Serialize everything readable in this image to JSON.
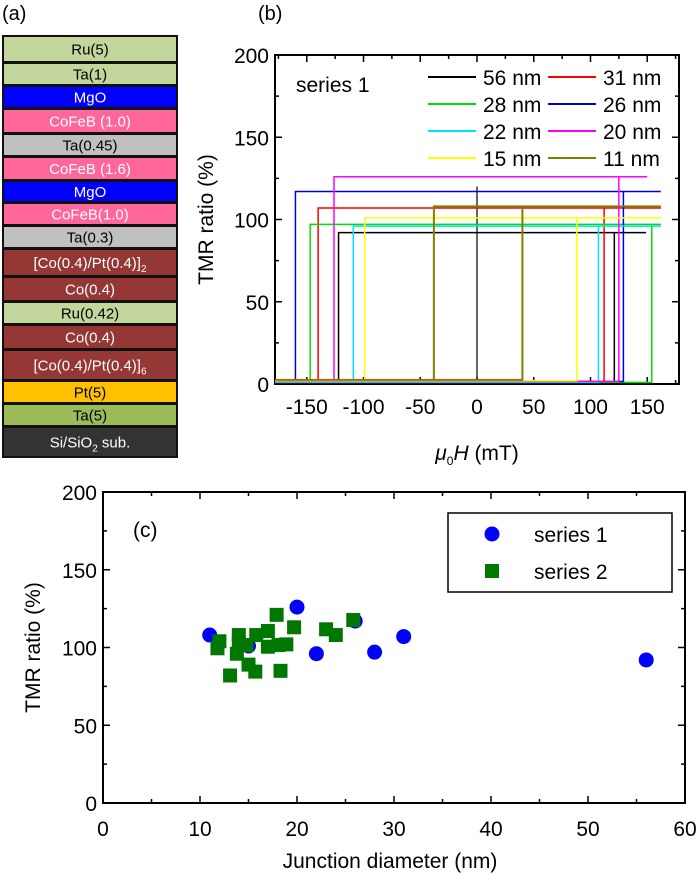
{
  "panel_labels": {
    "a": "(a)",
    "b": "(b)",
    "c": "(c)"
  },
  "stack": {
    "layers": [
      {
        "label": "Ru(5)",
        "sub": "",
        "suffix": "",
        "color": "#c3d69b",
        "text_color": "#000000"
      },
      {
        "label": "Ta(1)",
        "sub": "",
        "suffix": "",
        "color": "#c3d69b",
        "text_color": "#000000"
      },
      {
        "label": "MgO",
        "sub": "",
        "suffix": "",
        "color": "#0000ff",
        "text_color": "#ffffff"
      },
      {
        "label": "CoFeB (1.0)",
        "sub": "",
        "suffix": "",
        "color": "#ff6699",
        "text_color": "#ffffff"
      },
      {
        "label": "Ta(0.45)",
        "sub": "",
        "suffix": "",
        "color": "#c0c0c0",
        "text_color": "#000000"
      },
      {
        "label": "CoFeB (1.6)",
        "sub": "",
        "suffix": "",
        "color": "#ff6699",
        "text_color": "#ffffff"
      },
      {
        "label": "MgO",
        "sub": "",
        "suffix": "",
        "color": "#0000ff",
        "text_color": "#ffffff"
      },
      {
        "label": "CoFeB(1.0)",
        "sub": "",
        "suffix": "",
        "color": "#ff6699",
        "text_color": "#ffffff"
      },
      {
        "label": "Ta(0.3)",
        "sub": "",
        "suffix": "",
        "color": "#c0c0c0",
        "text_color": "#000000"
      },
      {
        "label": "[Co(0.4)/Pt(0.4)]",
        "sub": "2",
        "suffix": "",
        "color": "#953735",
        "text_color": "#ffffff"
      },
      {
        "label": "Co(0.4)",
        "sub": "",
        "suffix": "",
        "color": "#953735",
        "text_color": "#ffffff"
      },
      {
        "label": "Ru(0.42)",
        "sub": "",
        "suffix": "",
        "color": "#c3d69b",
        "text_color": "#000000"
      },
      {
        "label": "Co(0.4)",
        "sub": "",
        "suffix": "",
        "color": "#953735",
        "text_color": "#ffffff"
      },
      {
        "label": "[Co(0.4)/Pt(0.4)]",
        "sub": "6",
        "suffix": "",
        "color": "#953735",
        "text_color": "#ffffff"
      },
      {
        "label": "Pt(5)",
        "sub": "",
        "suffix": "",
        "color": "#ffc000",
        "text_color": "#000000"
      },
      {
        "label": "Ta(5)",
        "sub": "",
        "suffix": "",
        "color": "#9bbb59",
        "text_color": "#000000"
      },
      {
        "label": "Si/SiO",
        "sub": "2",
        "suffix": " sub.",
        "color": "#333333",
        "text_color": "#ffffff"
      }
    ]
  },
  "chart_data": [
    {
      "panel": "b",
      "type": "line",
      "annotation": "series 1",
      "xlabel": {
        "mu": "μ",
        "sub": "0",
        "var": "H",
        "unit": " (mT)"
      },
      "ylabel": "TMR ratio (%)",
      "xlim": [
        -178,
        178
      ],
      "ylim": [
        0,
        200
      ],
      "xticks": [
        -150,
        -100,
        -50,
        0,
        50,
        100,
        150
      ],
      "yticks": [
        0,
        50,
        100,
        150,
        200
      ],
      "legend_placement": "top-right",
      "series": [
        {
          "name": "56 nm",
          "color": "#000000",
          "tmr_high": 92,
          "tmr_low": 1,
          "switch_neg": -122,
          "switch_pos": 121,
          "h_max": 149
        },
        {
          "name": "31 nm",
          "color": "#ff0000",
          "tmr_high": 107,
          "tmr_low": 1.5,
          "switch_neg": -140,
          "switch_pos": 112,
          "h_max": 162
        },
        {
          "name": "28 nm",
          "color": "#00e000",
          "tmr_high": 97,
          "tmr_low": 1,
          "switch_neg": -147,
          "switch_pos": 154,
          "h_max": 162
        },
        {
          "name": "26 nm",
          "color": "#0000e0",
          "tmr_high": 117,
          "tmr_low": 1.5,
          "switch_neg": -160,
          "switch_pos": 129,
          "h_max": 162
        },
        {
          "name": "22 nm",
          "color": "#00e0ff",
          "tmr_high": 96,
          "tmr_low": 1,
          "switch_neg": -109,
          "switch_pos": 107,
          "h_max": 162
        },
        {
          "name": "20 nm",
          "color": "#ff00ff",
          "tmr_high": 126,
          "tmr_low": 1.5,
          "switch_neg": -126,
          "switch_pos": 125,
          "h_max": 150
        },
        {
          "name": "15 nm",
          "color": "#ffff00",
          "tmr_high": 101,
          "tmr_low": 2,
          "switch_neg": -99,
          "switch_pos": 88,
          "h_max": 162
        },
        {
          "name": "11 nm",
          "color": "#808000",
          "tmr_high": 108,
          "tmr_low": 2.5,
          "switch_neg": -38,
          "switch_pos": 40,
          "h_max": 162
        }
      ]
    },
    {
      "panel": "c",
      "type": "scatter",
      "xlabel": "Junction diameter (nm)",
      "ylabel": "TMR ratio (%)",
      "xlim": [
        0,
        60
      ],
      "ylim": [
        0,
        200
      ],
      "xticks": [
        0,
        10,
        20,
        30,
        40,
        50,
        60
      ],
      "yticks": [
        0,
        50,
        100,
        150,
        200
      ],
      "legend_placement": "top-right",
      "series": [
        {
          "name": "series 1",
          "marker": "circle",
          "color": "#0000ff",
          "x": [
            11,
            15,
            20,
            22,
            26,
            28,
            31,
            56
          ],
          "y": [
            108,
            101,
            126,
            96,
            117,
            97,
            107,
            92
          ]
        },
        {
          "name": "series 2",
          "marker": "square",
          "color": "#007700",
          "x": [
            12,
            11.8,
            14,
            14,
            13.8,
            14.8,
            15,
            15.7,
            13.1,
            15.8,
            17,
            17,
            17.9,
            18.1,
            18.9,
            19.7,
            18.3,
            23,
            24,
            25.8
          ],
          "y": [
            104,
            99.5,
            108,
            103,
            96,
            101.6,
            89,
            84.5,
            82,
            108,
            110.6,
            100.5,
            121,
            101.6,
            102,
            113,
            85,
            111.7,
            108,
            117.7
          ]
        }
      ]
    }
  ]
}
